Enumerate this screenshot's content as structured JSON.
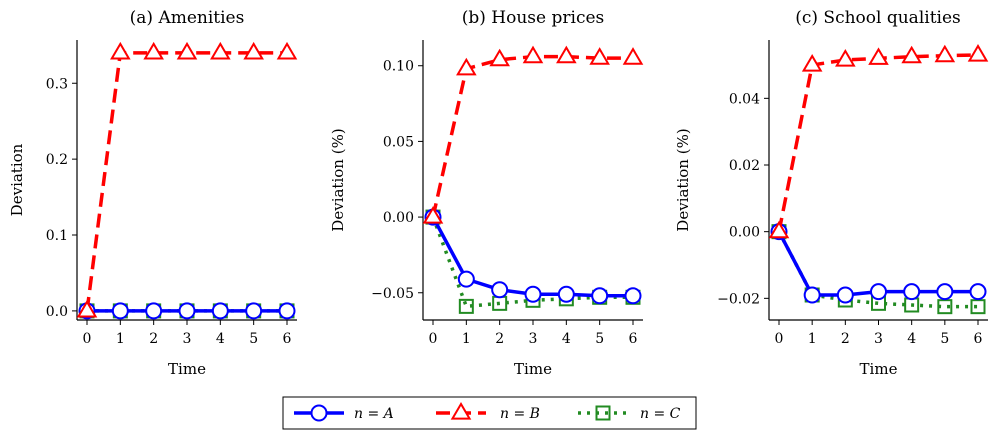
{
  "colors": {
    "A": "#0000ff",
    "B": "#ff0000",
    "C": "#228b22"
  },
  "legend": [
    {
      "series": "A",
      "label": "n = A"
    },
    {
      "series": "B",
      "label": "n = B"
    },
    {
      "series": "C",
      "label": "n = C"
    }
  ],
  "chart_data": [
    {
      "type": "line",
      "title": "(a) Amenities",
      "xlabel": "Time",
      "ylabel": "Deviation",
      "x": [
        0,
        1,
        2,
        3,
        4,
        5,
        6
      ],
      "xticks": [
        "0",
        "1",
        "2",
        "3",
        "4",
        "5",
        "6"
      ],
      "ylim": [
        -0.012,
        0.357
      ],
      "yticks": [
        0.0,
        0.1,
        0.2,
        0.3
      ],
      "ytick_labels": [
        "0.0",
        "0.1",
        "0.2",
        "0.3"
      ],
      "grid": false,
      "series": [
        {
          "key": "A",
          "name": "n = A",
          "marker": "circle",
          "dash": "solid",
          "values": [
            0,
            0,
            0,
            0,
            0,
            0,
            0
          ]
        },
        {
          "key": "B",
          "name": "n = B",
          "marker": "triangle",
          "dash": "dashed",
          "values": [
            0,
            0.34,
            0.34,
            0.34,
            0.34,
            0.34,
            0.34
          ]
        },
        {
          "key": "C",
          "name": "n = C",
          "marker": "square",
          "dash": "dotted",
          "values": [
            0,
            0,
            0,
            0,
            0,
            0,
            0
          ]
        }
      ]
    },
    {
      "type": "line",
      "title": "(b) House prices",
      "xlabel": "Time",
      "ylabel": "Deviation (%)",
      "x": [
        0,
        1,
        2,
        3,
        4,
        5,
        6
      ],
      "xticks": [
        "0",
        "1",
        "2",
        "3",
        "4",
        "5",
        "6"
      ],
      "ylim": [
        -0.068,
        0.117
      ],
      "yticks": [
        -0.05,
        0.0,
        0.05,
        0.1
      ],
      "ytick_labels": [
        "−0.05",
        "0.00",
        "0.05",
        "0.10"
      ],
      "grid": false,
      "series": [
        {
          "key": "A",
          "name": "n = A",
          "marker": "circle",
          "dash": "solid",
          "values": [
            0,
            -0.041,
            -0.048,
            -0.051,
            -0.051,
            -0.052,
            -0.052
          ]
        },
        {
          "key": "B",
          "name": "n = B",
          "marker": "triangle",
          "dash": "dashed",
          "values": [
            0,
            0.098,
            0.104,
            0.106,
            0.106,
            0.105,
            0.105
          ]
        },
        {
          "key": "C",
          "name": "n = C",
          "marker": "square",
          "dash": "dotted",
          "values": [
            0,
            -0.059,
            -0.057,
            -0.055,
            -0.054,
            -0.053,
            -0.053
          ]
        }
      ]
    },
    {
      "type": "line",
      "title": "(c) School qualities",
      "xlabel": "Time",
      "ylabel": "Deviation (%)",
      "x": [
        0,
        1,
        2,
        3,
        4,
        5,
        6
      ],
      "xticks": [
        "0",
        "1",
        "2",
        "3",
        "4",
        "5",
        "6"
      ],
      "ylim": [
        -0.0265,
        0.0575
      ],
      "yticks": [
        -0.02,
        0.0,
        0.02,
        0.04
      ],
      "ytick_labels": [
        "−0.02",
        "0.00",
        "0.02",
        "0.04"
      ],
      "grid": false,
      "series": [
        {
          "key": "A",
          "name": "n = A",
          "marker": "circle",
          "dash": "solid",
          "values": [
            0,
            -0.019,
            -0.019,
            -0.018,
            -0.018,
            -0.018,
            -0.018
          ]
        },
        {
          "key": "B",
          "name": "n = B",
          "marker": "triangle",
          "dash": "dashed",
          "values": [
            0,
            0.05,
            0.0515,
            0.052,
            0.0525,
            0.0528,
            0.053
          ]
        },
        {
          "key": "C",
          "name": "n = C",
          "marker": "square",
          "dash": "dotted",
          "values": [
            0,
            -0.019,
            -0.0205,
            -0.0215,
            -0.022,
            -0.0225,
            -0.0225
          ]
        }
      ]
    }
  ]
}
